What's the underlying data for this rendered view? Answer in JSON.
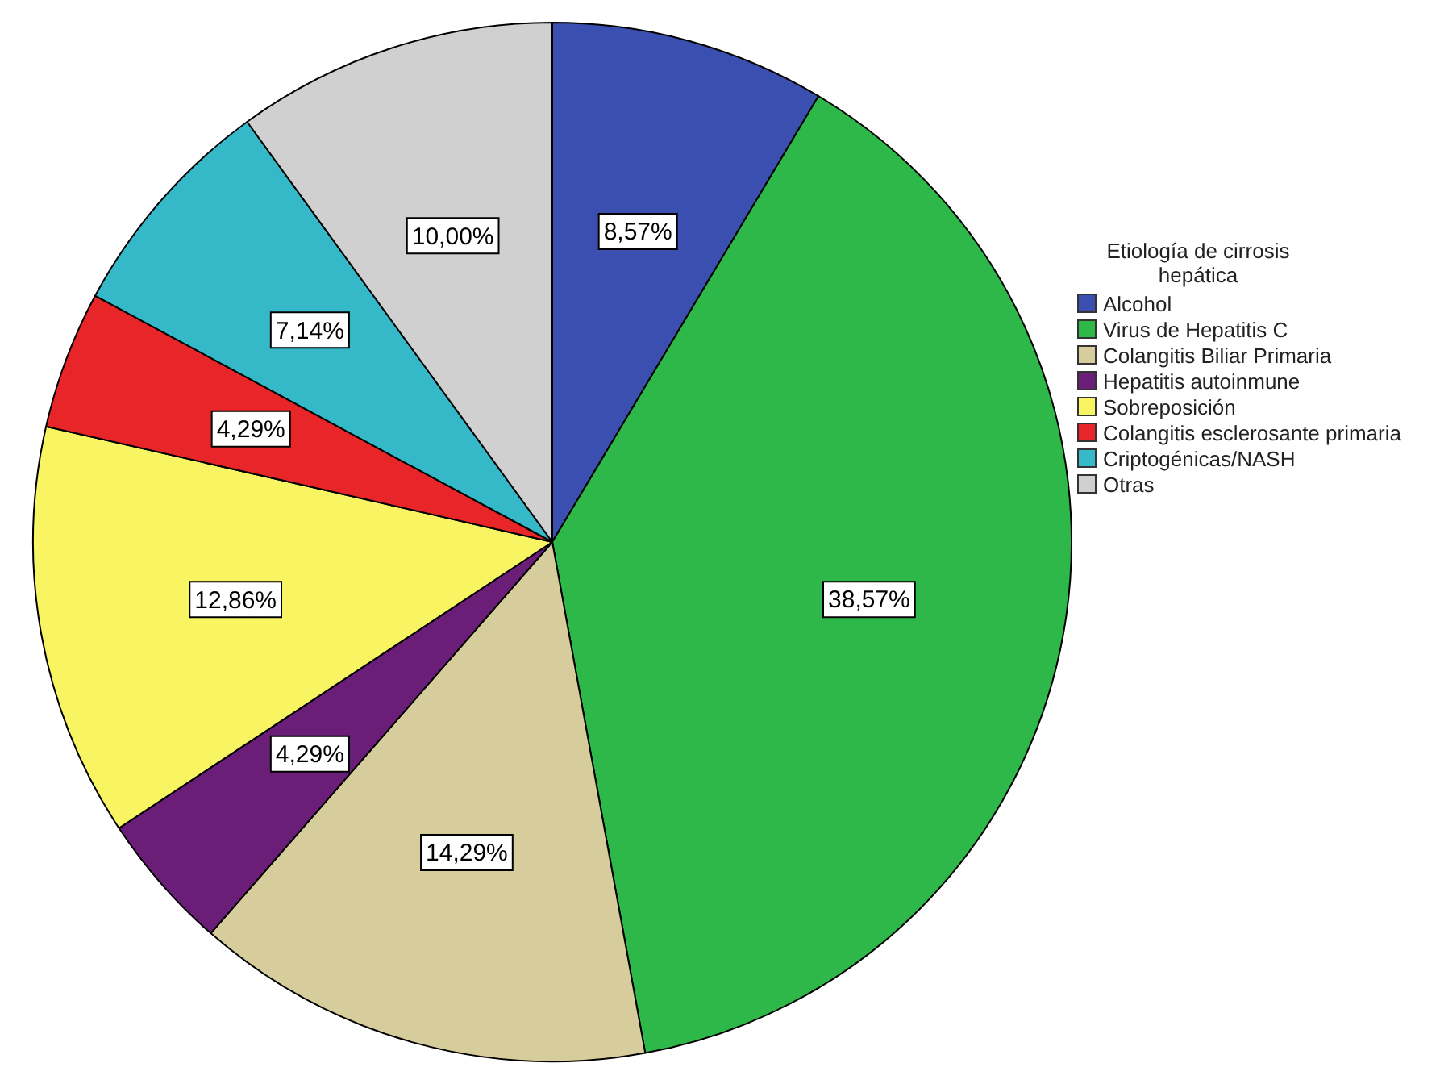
{
  "chart_data": {
    "type": "pie",
    "legend_title": "Etiología de cirrosis hepática",
    "legend": "top right",
    "categories": [
      "Alcohol",
      "Virus de Hepatitis C",
      "Colangitis Biliar Primaria",
      "Hepatitis autoinmune",
      "Sobreposición",
      "Colangitis esclerosante primaria",
      "Criptogénicas/NASH",
      "Otras"
    ],
    "values": [
      8.57,
      38.57,
      14.29,
      4.29,
      12.86,
      4.29,
      7.14,
      10.0
    ],
    "value_labels": [
      "8,57%",
      "38,57%",
      "14,29%",
      "4,29%",
      "12,86%",
      "4,29%",
      "7,14%",
      "10,00%"
    ],
    "colors": [
      "#3b4fb0",
      "#2fb84a",
      "#d6cc9c",
      "#6a1e78",
      "#f8f462",
      "#e8262a",
      "#35b8c8",
      "#d0d0d0"
    ]
  }
}
